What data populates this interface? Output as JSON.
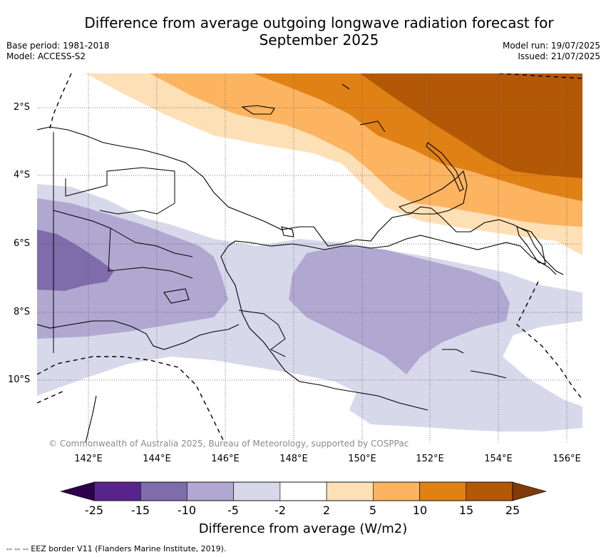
{
  "title": "Difference from average outgoing longwave radiation forecast for September 2025",
  "base_period": "Base period: 1981-2018",
  "model": "Model: ACCESS-S2",
  "model_run": "Model run: 19/07/2025",
  "issued": "Issued: 21/07/2025",
  "lat_labels": [
    "2°S",
    "4°S",
    "6°S",
    "8°S",
    "10°S"
  ],
  "lon_labels": [
    "142°E",
    "144°E",
    "146°E",
    "148°E",
    "150°E",
    "152°E",
    "154°E",
    "156°E"
  ],
  "copyright": "© Commonwealth of Australia 2025, Bureau of Meteorology, supported by COSPPac",
  "colorbar": {
    "ticks": [
      "-25",
      "-15",
      "-10",
      "-5",
      "-2",
      "2",
      "5",
      "10",
      "15",
      "25"
    ],
    "colors": [
      "#58248c",
      "#7f6cab",
      "#b1a8d2",
      "#d8d8eb",
      "#ffffff",
      "#fee0b6",
      "#fdb461",
      "#e08115",
      "#b35806"
    ],
    "under_color": "#2d004b",
    "over_color": "#7f3b08",
    "label": "Difference from average (W/m2)"
  },
  "footnote": "-- -- -- EEZ border V11 (Flanders Marine Institute, 2019)."
}
